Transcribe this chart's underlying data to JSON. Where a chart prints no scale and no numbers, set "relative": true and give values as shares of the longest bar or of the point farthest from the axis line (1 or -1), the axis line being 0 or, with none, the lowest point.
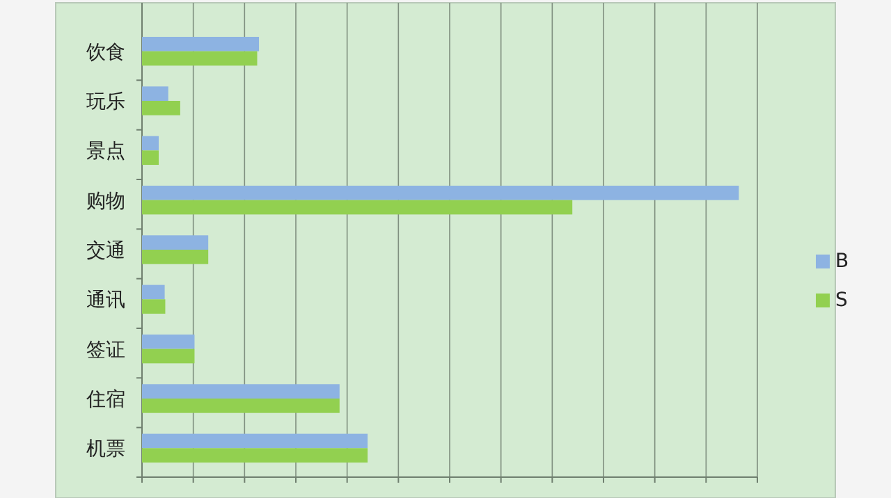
{
  "chart_data": {
    "type": "bar",
    "orientation": "horizontal",
    "relative": true,
    "grid": "x",
    "legend": "right",
    "categories": [
      "饮食",
      "玩乐",
      "景点",
      "购物",
      "交通",
      "通讯",
      "签证",
      "住宿",
      "机票"
    ],
    "series": [
      {
        "name": "B",
        "color": "#8db3e2",
        "values": [
          0.196,
          0.044,
          0.028,
          1,
          0.111,
          0.038,
          0.088,
          0.331,
          0.378
        ]
      },
      {
        "name": "S",
        "color": "#92d050",
        "values": [
          0.193,
          0.064,
          0.028,
          0.721,
          0.111,
          0.039,
          0.088,
          0.331,
          0.378
        ]
      }
    ]
  }
}
